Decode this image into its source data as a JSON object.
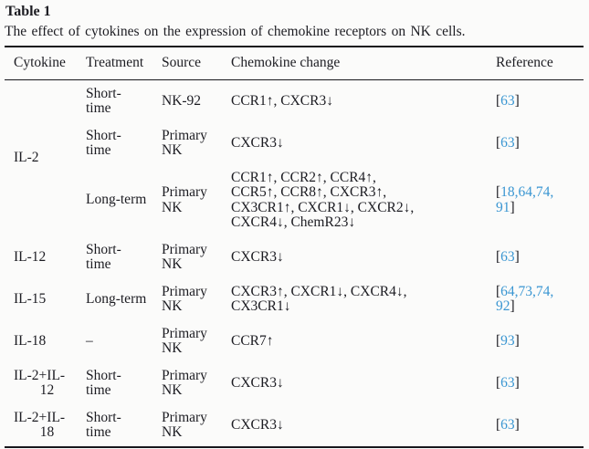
{
  "title": "Table 1",
  "caption": "The effect of cytokines on the expression of chemokine receptors on NK cells.",
  "colors": {
    "link_blue": "#3a96d2",
    "text": "#1c1c22",
    "rule": "#17171c"
  },
  "table": {
    "columns": [
      "Cytokine",
      "Treatment",
      "Source",
      "Chemokine change",
      "Reference"
    ],
    "reference_bracket_open": "[",
    "reference_bracket_close": "]",
    "reference_separator": ",",
    "rows": [
      {
        "cytokine": {
          "lines": [
            "IL-2"
          ],
          "rowspan": 3
        },
        "treatment": [
          "Short-",
          "time"
        ],
        "source": [
          "NK-92"
        ],
        "chemokine": [
          "CCR1↑, CXCR3↓"
        ],
        "references": [
          "63"
        ]
      },
      {
        "treatment": [
          "Short-",
          "time"
        ],
        "source": [
          "Primary",
          "NK"
        ],
        "chemokine": [
          "CXCR3↓"
        ],
        "references": [
          "63"
        ]
      },
      {
        "treatment": [
          "Long-term"
        ],
        "source": [
          "Primary",
          "NK"
        ],
        "chemokine": [
          "CCR1↑, CCR2↑, CCR4↑,",
          "CCR5↑, CCR8↑, CXCR3↑,",
          "CX3CR1↑, CXCR1↓, CXCR2↓,",
          "CXCR4↓, ChemR23↓"
        ],
        "references": [
          "18",
          "64",
          "74",
          "91"
        ]
      },
      {
        "cytokine": {
          "lines": [
            "IL-12"
          ],
          "rowspan": 1
        },
        "treatment": [
          "Short-",
          "time"
        ],
        "source": [
          "Primary",
          "NK"
        ],
        "chemokine": [
          "CXCR3↓"
        ],
        "references": [
          "63"
        ]
      },
      {
        "cytokine": {
          "lines": [
            "IL-15"
          ],
          "rowspan": 1
        },
        "treatment": [
          "Long-term"
        ],
        "source": [
          "Primary",
          "NK"
        ],
        "chemokine": [
          "CXCR3↑, CXCR1↓, CXCR4↓,",
          "CX3CR1↓"
        ],
        "references": [
          "64",
          "73",
          "74",
          "92"
        ]
      },
      {
        "cytokine": {
          "lines": [
            "IL-18"
          ],
          "rowspan": 1
        },
        "treatment": [
          "–"
        ],
        "source": [
          "Primary",
          "NK"
        ],
        "chemokine": [
          "CCR7↑"
        ],
        "references": [
          "93"
        ]
      },
      {
        "cytokine": {
          "lines": [
            "IL-2+IL-",
            "12"
          ],
          "rowspan": 1
        },
        "treatment": [
          "Short-",
          "time"
        ],
        "source": [
          "Primary",
          "NK"
        ],
        "chemokine": [
          "CXCR3↓"
        ],
        "references": [
          "63"
        ]
      },
      {
        "cytokine": {
          "lines": [
            "IL-2+IL-",
            "18"
          ],
          "rowspan": 1
        },
        "treatment": [
          "Short-",
          "time"
        ],
        "source": [
          "Primary",
          "NK"
        ],
        "chemokine": [
          "CXCR3↓"
        ],
        "references": [
          "63"
        ]
      }
    ]
  }
}
